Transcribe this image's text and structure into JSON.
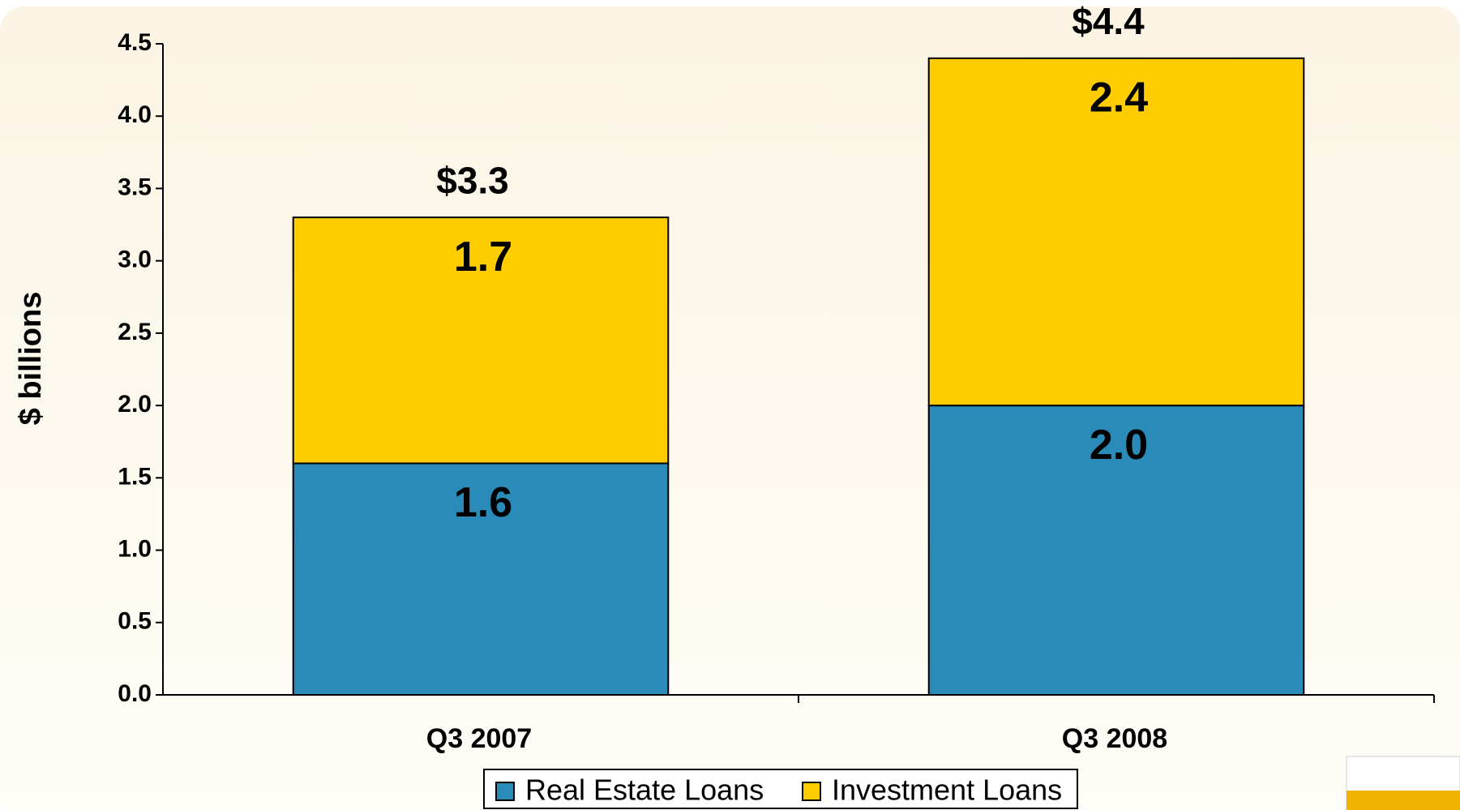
{
  "chart_data": {
    "type": "stacked_bar",
    "y_label": "$ billions",
    "categories": [
      "Q3 2007",
      "Q3 2008"
    ],
    "series": [
      {
        "name": "Real Estate Loans",
        "color": "#2a8ab8",
        "values": [
          1.6,
          2.0
        ],
        "value_labels": [
          "1.6",
          "2.0"
        ]
      },
      {
        "name": "Investment Loans",
        "color": "#ffcc00",
        "values": [
          1.7,
          2.4
        ]
      }
    ],
    "totals": {
      "values": [
        3.3,
        4.4
      ],
      "value_labels": [
        "$3.3",
        "$4.4"
      ]
    },
    "ylim": [
      0,
      4.5
    ],
    "yticks": [
      {
        "value": 0,
        "label": "0.0"
      },
      0.5,
      {
        "value": 1,
        "label": "1.0"
      },
      1.5,
      {
        "value": 2,
        "label": "2.0"
      },
      2.5,
      {
        "value": 3,
        "label": "3.0"
      },
      3.5,
      {
        "value": 4,
        "label": "4.0"
      },
      4.5
    ],
    "grid": false,
    "legend": "bottom"
  }
}
